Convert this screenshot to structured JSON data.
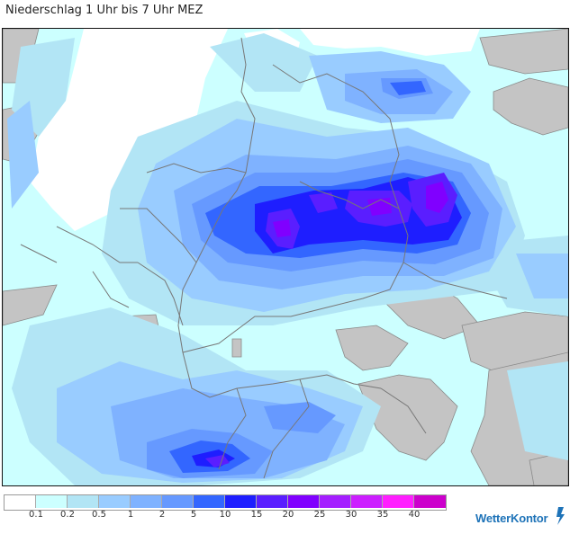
{
  "title": "Niederschlag 1 Uhr bis 7 Uhr MEZ",
  "legend": {
    "colors": [
      "#ffffff",
      "#ccffff",
      "#b2e5f5",
      "#99ccff",
      "#7fb2ff",
      "#6699ff",
      "#3366ff",
      "#1e1eff",
      "#5a1eff",
      "#8000ff",
      "#a41eff",
      "#cc1eff",
      "#ff1eff",
      "#cc00cc"
    ],
    "labels": [
      "0.1",
      "0.2",
      "0.5",
      "1",
      "2",
      "5",
      "10",
      "15",
      "20",
      "25",
      "30",
      "35",
      "40"
    ]
  },
  "logo": {
    "text": "WetterKontor"
  }
}
